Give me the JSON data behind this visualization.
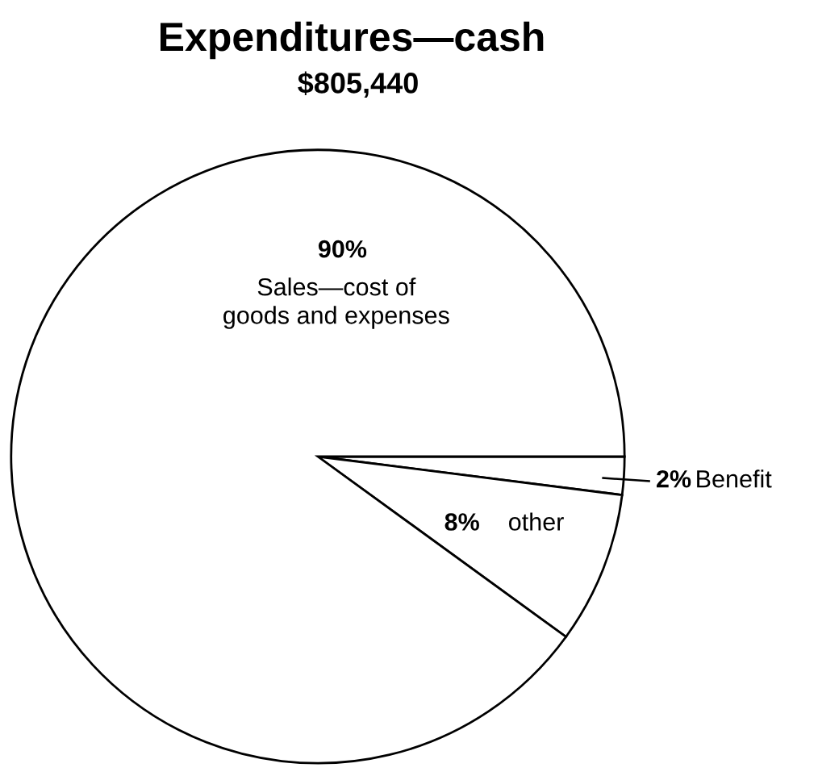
{
  "chart_data": {
    "type": "pie",
    "title": "Expenditures—cash",
    "subtitle": "$805,440",
    "categories": [
      "Benefit",
      "other",
      "Sales—cost of goods and expenses"
    ],
    "values": [
      2,
      8,
      90
    ],
    "colors": [
      "#ffffff",
      "#ffffff",
      "#ffffff"
    ],
    "value_labels": [
      "2%",
      "8%",
      "90%"
    ]
  }
}
